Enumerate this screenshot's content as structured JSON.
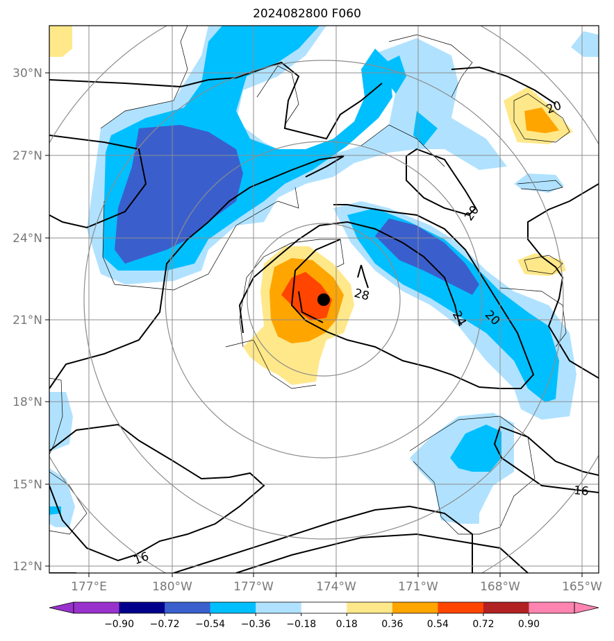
{
  "title": "2024082800 F060",
  "lat_ticks": [
    "30°N",
    "27°N",
    "24°N",
    "21°N",
    "18°N",
    "15°N",
    "12°N"
  ],
  "lon_ticks": [
    "177°E",
    "180°W",
    "177°W",
    "174°W",
    "171°W",
    "168°W",
    "165°W"
  ],
  "colorbar": {
    "labels": [
      "−0.90",
      "−0.72",
      "−0.54",
      "−0.36",
      "−0.18",
      "0.18",
      "0.36",
      "0.54",
      "0.72",
      "0.90"
    ],
    "colors": [
      "#9932cc",
      "#00008b",
      "#3a5fcd",
      "#00bfff",
      "#b0e2ff",
      "#ffffff",
      "#ffe88a",
      "#ffa500",
      "#ff4500",
      "#b22222",
      "#ff85b0"
    ]
  },
  "contour_labels": [
    "20",
    "20",
    "28",
    "24",
    "20",
    "16",
    "16"
  ],
  "colors": {
    "light_blue": "#b0e2ff",
    "deep_sky": "#00bfff",
    "royal_blue": "#3a5fcd",
    "yellow": "#ffe88a",
    "orange": "#ffa500",
    "red_orange": "#ff4500",
    "grid": "#8c8c8c",
    "storm_marker": "#000000"
  }
}
